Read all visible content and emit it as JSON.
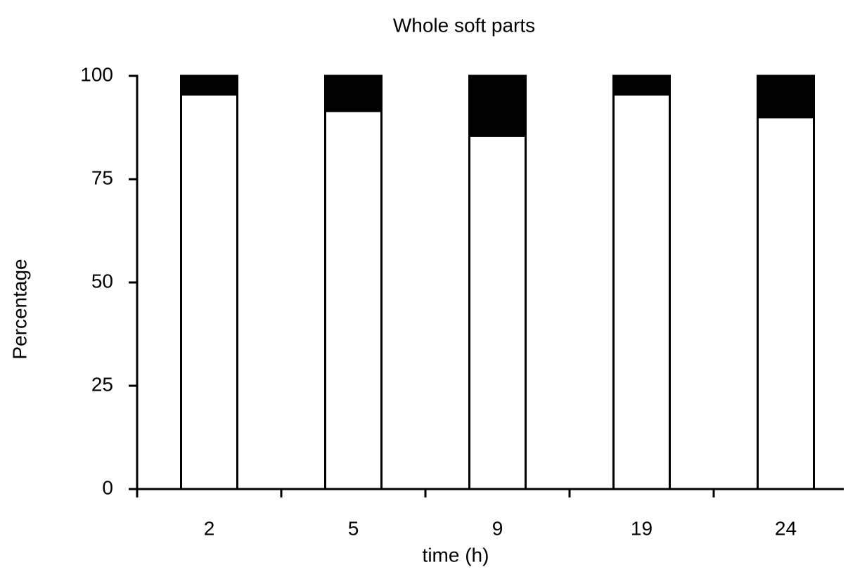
{
  "chart_data": {
    "type": "stacked_bar",
    "title": "Whole soft parts",
    "x_label": "time (h)",
    "y_label": "Percentage",
    "categories": [
      "2",
      "5",
      "9",
      "19",
      "24"
    ],
    "series": [
      {
        "color": "#ffffff",
        "values": [
          95.5,
          91.5,
          85.5,
          95.5,
          90
        ]
      },
      {
        "color": "#000000",
        "values": [
          4.5,
          8.5,
          14.5,
          4.5,
          10
        ]
      }
    ],
    "ylim": [
      0,
      100
    ],
    "yticks": [
      0,
      25,
      50,
      75,
      100
    ]
  }
}
